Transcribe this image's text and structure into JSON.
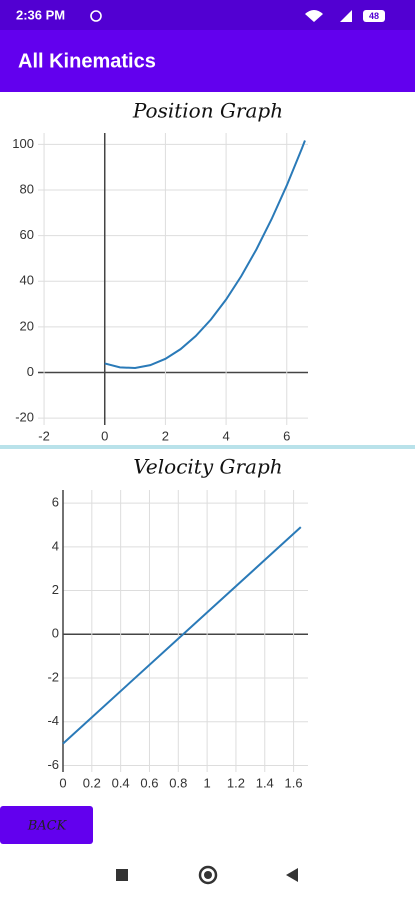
{
  "status_bar": {
    "time": "2:36 PM",
    "battery": "48"
  },
  "app_bar": {
    "title": "All Kinematics"
  },
  "chart_data": [
    {
      "type": "line",
      "title": "Position Graph",
      "x": [
        0,
        0.5,
        1,
        1.5,
        2,
        2.5,
        3,
        3.5,
        4,
        4.5,
        5,
        5.5,
        6,
        6.5,
        6.6
      ],
      "series": [
        {
          "color": "#2a7ab8",
          "values": [
            4,
            2.25,
            2,
            3.25,
            6,
            10.25,
            16,
            23.25,
            32,
            42.25,
            54,
            67.25,
            82,
            98.25,
            101.7
          ]
        }
      ],
      "xlim": [
        -2.2,
        6.7
      ],
      "xticks": [
        -2,
        0,
        2,
        4,
        6
      ],
      "ylim": [
        -23,
        105
      ],
      "yticks": [
        -20,
        0,
        20,
        40,
        60,
        80,
        100
      ],
      "grid": true
    },
    {
      "type": "line",
      "title": "Velocity Graph",
      "x": [
        0,
        1.65
      ],
      "series": [
        {
          "color": "#2a7ab8",
          "values": [
            -5,
            4.9
          ]
        }
      ],
      "xlim": [
        0,
        1.7
      ],
      "xticks": [
        0,
        0.2,
        0.4,
        0.6,
        0.8,
        1,
        1.2,
        1.4,
        1.6
      ],
      "ylim": [
        -6.3,
        6.6
      ],
      "yticks": [
        -6,
        -4,
        -2,
        0,
        2,
        4,
        6
      ],
      "grid": true
    }
  ],
  "button": {
    "label": "BACK"
  }
}
